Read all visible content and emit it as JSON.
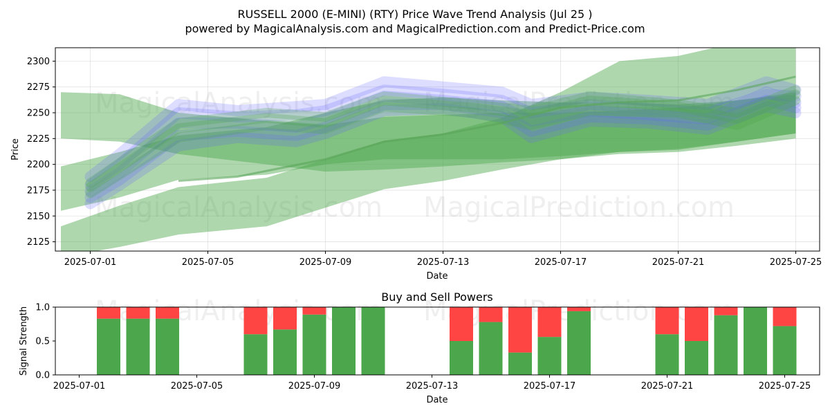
{
  "title": "RUSSELL 2000 (E-MINI) (RTY) Price Wave Trend Analysis (Jul 25 )",
  "subtitle": "powered by MagicalAnalysis.com and MagicalPrediction.com and Predict-Price.com",
  "watermarks": [
    "MagicalAnalysis.com",
    "MagicalPrediction.com"
  ],
  "colors": {
    "buy": "#4ca64c",
    "sell": "#ff4444",
    "wave_blue": "#6666ff",
    "wave_green": "#4ca64c"
  },
  "chart_data": [
    {
      "type": "area",
      "title": "",
      "xlabel": "Date",
      "ylabel": "Price",
      "ylim": [
        2116,
        2313
      ],
      "xlim": [
        "2025-06-30",
        "2025-07-26"
      ],
      "grid": true,
      "x_ticks": [
        "2025-07-01",
        "2025-07-05",
        "2025-07-09",
        "2025-07-13",
        "2025-07-17",
        "2025-07-21",
        "2025-07-25"
      ],
      "y_ticks": [
        2125,
        2150,
        2175,
        2200,
        2225,
        2250,
        2275,
        2300
      ],
      "green_bands": [
        {
          "x": [
            "2025-06-30",
            "2025-07-02",
            "2025-07-04",
            "2025-07-07",
            "2025-07-09",
            "2025-07-11",
            "2025-07-13",
            "2025-07-15",
            "2025-07-17",
            "2025-07-19",
            "2025-07-21",
            "2025-07-23",
            "2025-07-25"
          ],
          "upper": [
            2270,
            2268,
            2250,
            2242,
            2238,
            2246,
            2248,
            2250,
            2250,
            2252,
            2255,
            2262,
            2270
          ],
          "lower": [
            2225,
            2222,
            2210,
            2200,
            2193,
            2195,
            2198,
            2202,
            2205,
            2210,
            2212,
            2218,
            2225
          ]
        },
        {
          "x": [
            "2025-06-30",
            "2025-07-02",
            "2025-07-04",
            "2025-07-07",
            "2025-07-09",
            "2025-07-11",
            "2025-07-13",
            "2025-07-15",
            "2025-07-17",
            "2025-07-19",
            "2025-07-21",
            "2025-07-23",
            "2025-07-25"
          ],
          "upper": [
            2198,
            2212,
            2228,
            2236,
            2250,
            2262,
            2265,
            2262,
            2260,
            2260,
            2258,
            2262,
            2268
          ],
          "lower": [
            2155,
            2168,
            2185,
            2190,
            2200,
            2205,
            2205,
            2205,
            2208,
            2212,
            2215,
            2222,
            2230
          ]
        },
        {
          "x": [
            "2025-06-30",
            "2025-07-02",
            "2025-07-04",
            "2025-07-07",
            "2025-07-09",
            "2025-07-11",
            "2025-07-13",
            "2025-07-15",
            "2025-07-17",
            "2025-07-19",
            "2025-07-21",
            "2025-07-23",
            "2025-07-25"
          ],
          "upper": [
            2140,
            2160,
            2178,
            2187,
            2205,
            2223,
            2230,
            2245,
            2270,
            2300,
            2305,
            2318,
            2325
          ],
          "lower": [
            2110,
            2120,
            2132,
            2140,
            2158,
            2176,
            2184,
            2195,
            2205,
            2212,
            2214,
            2222,
            2230
          ]
        }
      ],
      "blue_waves": [
        {
          "x": [
            "2025-07-01",
            "2025-07-02",
            "2025-07-04",
            "2025-07-06",
            "2025-07-08",
            "2025-07-09",
            "2025-07-11",
            "2025-07-13",
            "2025-07-15",
            "2025-07-16",
            "2025-07-18",
            "2025-07-20",
            "2025-07-22",
            "2025-07-24",
            "2025-07-25"
          ],
          "y": [
            2188,
            2210,
            2258,
            2252,
            2256,
            2258,
            2280,
            2275,
            2270,
            2258,
            2265,
            2262,
            2258,
            2280,
            2272
          ]
        },
        {
          "x": [
            "2025-07-01",
            "2025-07-02",
            "2025-07-04",
            "2025-07-06",
            "2025-07-08",
            "2025-07-09",
            "2025-07-11",
            "2025-07-13",
            "2025-07-15",
            "2025-07-16",
            "2025-07-18",
            "2025-07-20",
            "2025-07-22",
            "2025-07-24",
            "2025-07-25"
          ],
          "y": [
            2180,
            2200,
            2250,
            2246,
            2248,
            2252,
            2272,
            2268,
            2262,
            2250,
            2258,
            2254,
            2250,
            2268,
            2266
          ]
        },
        {
          "x": [
            "2025-07-01",
            "2025-07-02",
            "2025-07-04",
            "2025-07-06",
            "2025-07-08",
            "2025-07-09",
            "2025-07-11",
            "2025-07-13",
            "2025-07-15",
            "2025-07-16",
            "2025-07-18",
            "2025-07-20",
            "2025-07-22",
            "2025-07-24",
            "2025-07-25"
          ],
          "y": [
            2174,
            2192,
            2240,
            2240,
            2236,
            2244,
            2266,
            2262,
            2256,
            2242,
            2252,
            2248,
            2244,
            2270,
            2260
          ]
        },
        {
          "x": [
            "2025-07-01",
            "2025-07-02",
            "2025-07-04",
            "2025-07-06",
            "2025-07-08",
            "2025-07-09",
            "2025-07-11",
            "2025-07-13",
            "2025-07-15",
            "2025-07-16",
            "2025-07-18",
            "2025-07-20",
            "2025-07-22",
            "2025-07-24",
            "2025-07-25"
          ],
          "y": [
            2168,
            2185,
            2228,
            2232,
            2228,
            2236,
            2258,
            2258,
            2250,
            2232,
            2246,
            2244,
            2238,
            2262,
            2255
          ]
        },
        {
          "x": [
            "2025-07-01",
            "2025-07-02",
            "2025-07-04",
            "2025-07-06",
            "2025-07-08",
            "2025-07-09",
            "2025-07-11",
            "2025-07-13",
            "2025-07-15",
            "2025-07-16",
            "2025-07-18",
            "2025-07-20",
            "2025-07-22",
            "2025-07-24",
            "2025-07-25"
          ],
          "y": [
            2162,
            2180,
            2218,
            2226,
            2222,
            2230,
            2252,
            2254,
            2246,
            2226,
            2242,
            2240,
            2234,
            2256,
            2250
          ]
        }
      ],
      "green_waves": [
        {
          "x": [
            "2025-07-01",
            "2025-07-04",
            "2025-07-07",
            "2025-07-09",
            "2025-07-11",
            "2025-07-14",
            "2025-07-16",
            "2025-07-18",
            "2025-07-21",
            "2025-07-23",
            "2025-07-25"
          ],
          "y": [
            2178,
            2235,
            2245,
            2240,
            2262,
            2255,
            2248,
            2262,
            2256,
            2244,
            2268
          ]
        },
        {
          "x": [
            "2025-07-01",
            "2025-07-04",
            "2025-07-07",
            "2025-07-09",
            "2025-07-11",
            "2025-07-14",
            "2025-07-16",
            "2025-07-18",
            "2025-07-21",
            "2025-07-23",
            "2025-07-25"
          ],
          "y": [
            2172,
            2226,
            2238,
            2234,
            2256,
            2250,
            2238,
            2252,
            2250,
            2238,
            2262
          ]
        },
        {
          "x": [
            "2025-07-01",
            "2025-07-04",
            "2025-07-07",
            "2025-07-09",
            "2025-07-11",
            "2025-07-14",
            "2025-07-16",
            "2025-07-18",
            "2025-07-21",
            "2025-07-23",
            "2025-07-25"
          ],
          "y": [
            2182,
            2240,
            2250,
            2246,
            2266,
            2258,
            2252,
            2266,
            2258,
            2250,
            2272
          ]
        }
      ],
      "trend_line": {
        "x": [
          "2025-07-04",
          "2025-07-06",
          "2025-07-09",
          "2025-07-11",
          "2025-07-13",
          "2025-07-15",
          "2025-07-17",
          "2025-07-19",
          "2025-07-21",
          "2025-07-23",
          "2025-07-25"
        ],
        "y": [
          2184,
          2188,
          2205,
          2222,
          2229,
          2240,
          2255,
          2260,
          2262,
          2272,
          2285
        ]
      }
    },
    {
      "type": "bar",
      "title": "Buy and Sell Powers",
      "xlabel": "Date",
      "ylabel": "Signal Strength",
      "ylim": [
        0,
        1.0
      ],
      "xlim": [
        "2025-06-30",
        "2025-07-26"
      ],
      "x_ticks": [
        "2025-07-01",
        "2025-07-05",
        "2025-07-09",
        "2025-07-13",
        "2025-07-17",
        "2025-07-21",
        "2025-07-25"
      ],
      "y_ticks": [
        "0.0",
        "0.5",
        "1.0"
      ],
      "categories": [
        "2025-07-02",
        "2025-07-03",
        "2025-07-04",
        "2025-07-07",
        "2025-07-08",
        "2025-07-09",
        "2025-07-10",
        "2025-07-11",
        "2025-07-14",
        "2025-07-15",
        "2025-07-16",
        "2025-07-17",
        "2025-07-18",
        "2025-07-21",
        "2025-07-22",
        "2025-07-23",
        "2025-07-24",
        "2025-07-25"
      ],
      "series": [
        {
          "values": [
            0.83,
            0.83,
            0.83,
            0.6,
            0.67,
            0.89,
            1.0,
            1.0,
            0.5,
            0.78,
            0.33,
            0.56,
            0.94,
            0.6,
            0.5,
            0.88,
            1.0,
            0.72
          ]
        },
        {
          "values": [
            0.17,
            0.17,
            0.17,
            0.4,
            0.33,
            0.11,
            0.0,
            0.0,
            0.5,
            0.22,
            0.67,
            0.44,
            0.06,
            0.4,
            0.5,
            0.12,
            0.0,
            0.28
          ]
        }
      ]
    }
  ]
}
